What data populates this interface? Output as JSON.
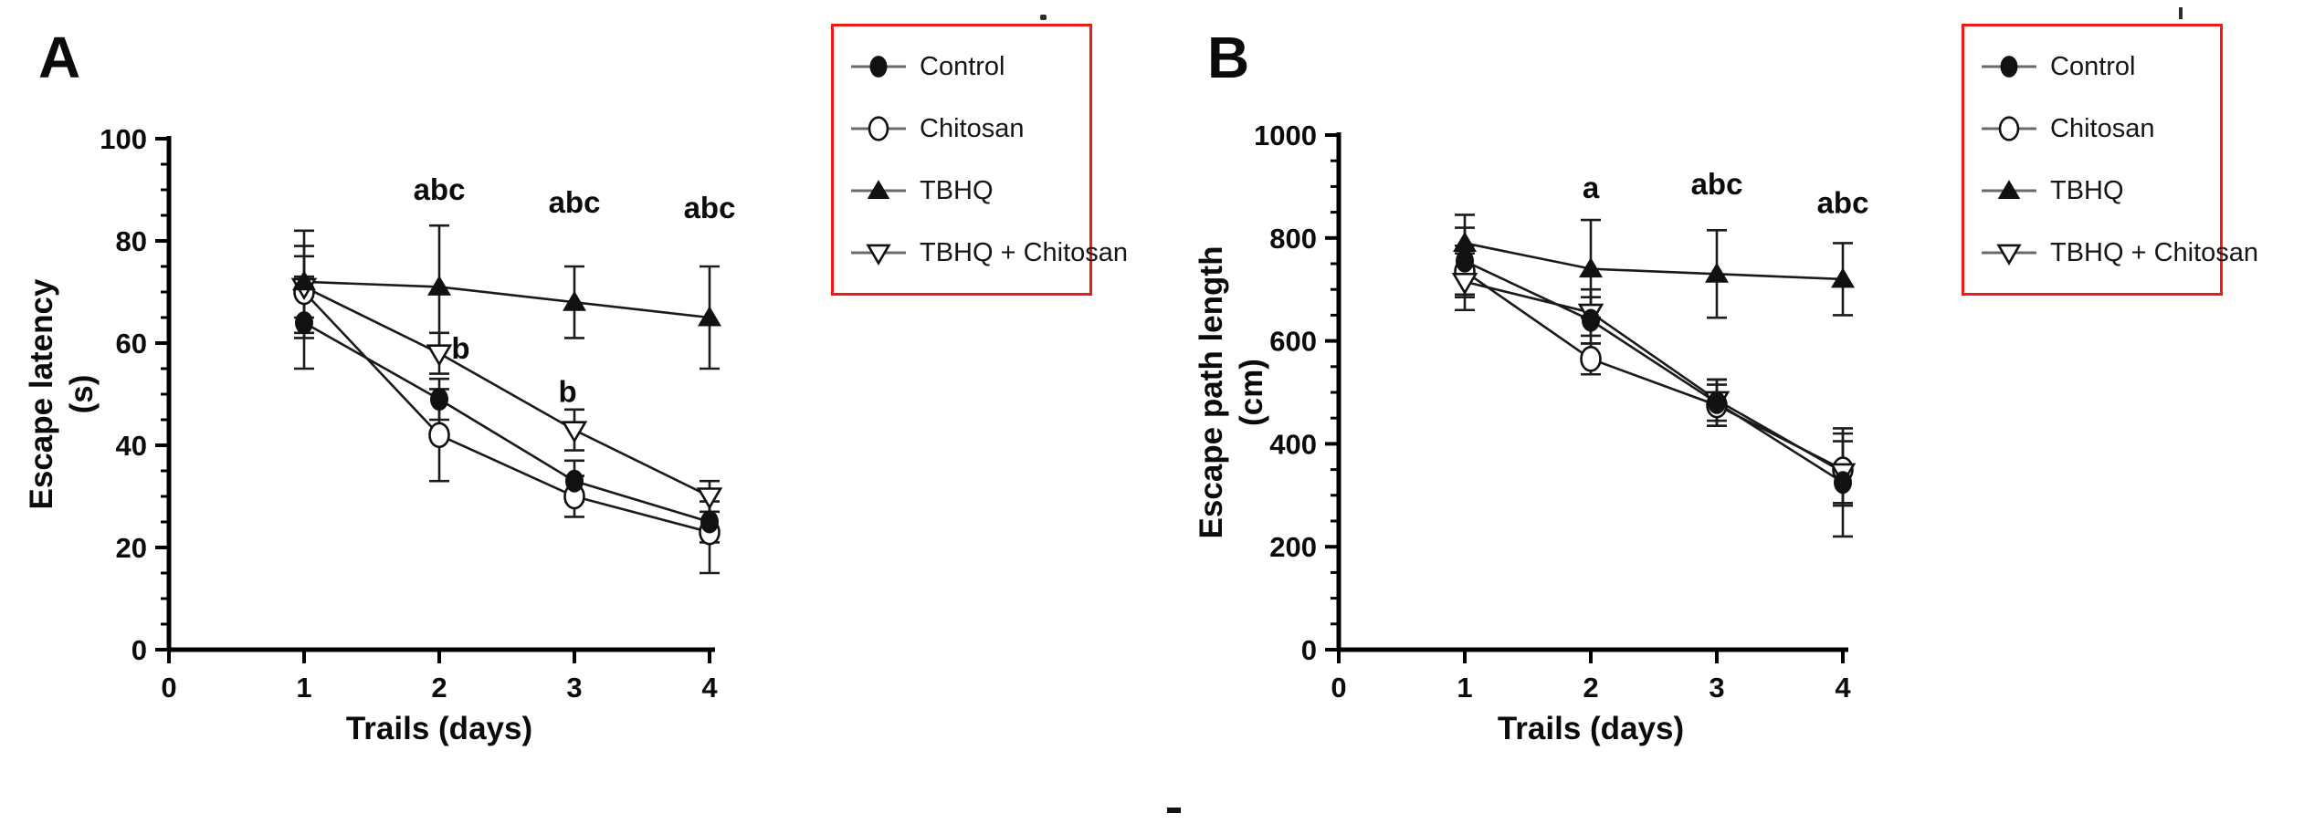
{
  "panels": [
    {
      "letter": "A"
    },
    {
      "letter": "B"
    }
  ],
  "legend": {
    "border_color": "#f21b14",
    "items": [
      {
        "label": "Control",
        "marker": "filled-circle"
      },
      {
        "label": "Chitosan",
        "marker": "open-circle"
      },
      {
        "label": "TBHQ",
        "marker": "filled-triangle-up"
      },
      {
        "label": "TBHQ + Chitosan",
        "marker": "open-triangle-down"
      }
    ]
  },
  "chart_data": [
    {
      "panel": "A",
      "type": "line",
      "title": "",
      "xlabel": "Trails (days)",
      "ylabel": [
        "Escape latency",
        "(s)"
      ],
      "xlim": [
        0,
        4
      ],
      "ylim": [
        0,
        100
      ],
      "xticks": [
        0,
        1,
        2,
        3,
        4
      ],
      "yticks": [
        0,
        20,
        40,
        60,
        80,
        100
      ],
      "y_minor_step": 5,
      "grid": false,
      "legend_position": "right-outside",
      "x": [
        1,
        2,
        3,
        4
      ],
      "series": [
        {
          "name": "Control",
          "marker": "filled-circle",
          "values": [
            64,
            49,
            33,
            25
          ],
          "errors": [
            9,
            4,
            4,
            4
          ]
        },
        {
          "name": "Chitosan",
          "marker": "open-circle",
          "values": [
            70,
            42,
            30,
            23
          ],
          "errors": [
            9,
            9,
            4,
            8
          ]
        },
        {
          "name": "TBHQ",
          "marker": "filled-triangle-up",
          "values": [
            72,
            71,
            68,
            65
          ],
          "errors": [
            10,
            12,
            7,
            10
          ]
        },
        {
          "name": "TBHQ + Chitosan",
          "marker": "open-triangle-down",
          "values": [
            71,
            58,
            43,
            30
          ],
          "errors": [
            6,
            4,
            4,
            3
          ]
        }
      ],
      "annotations": [
        {
          "text": "abc",
          "x": 2,
          "y": 88,
          "anchor": "middle"
        },
        {
          "text": "abc",
          "x": 3,
          "y": 85.5,
          "anchor": "middle"
        },
        {
          "text": "abc",
          "x": 4,
          "y": 84.5,
          "anchor": "middle"
        },
        {
          "text": "b",
          "x": 2.09,
          "y": 57,
          "anchor": "start"
        },
        {
          "text": "b",
          "x": 2.95,
          "y": 48.5,
          "anchor": "middle"
        }
      ]
    },
    {
      "panel": "B",
      "type": "line",
      "title": "",
      "xlabel": "Trails (days)",
      "ylabel": [
        "Escape path length",
        "(cm)"
      ],
      "xlim": [
        0,
        4
      ],
      "ylim": [
        0,
        1000
      ],
      "xticks": [
        0,
        1,
        2,
        3,
        4
      ],
      "yticks": [
        0,
        200,
        400,
        600,
        800,
        1000
      ],
      "y_minor_step": 50,
      "grid": false,
      "legend_position": "right-outside",
      "x": [
        1,
        2,
        3,
        4
      ],
      "series": [
        {
          "name": "Control",
          "marker": "filled-circle",
          "values": [
            755,
            640,
            480,
            325
          ],
          "errors": [
            65,
            45,
            45,
            105
          ]
        },
        {
          "name": "Chitosan",
          "marker": "open-circle",
          "values": [
            735,
            565,
            475,
            350
          ],
          "errors": [
            50,
            30,
            40,
            70
          ]
        },
        {
          "name": "TBHQ",
          "marker": "filled-triangle-up",
          "values": [
            790,
            740,
            730,
            720
          ],
          "errors": [
            55,
            95,
            85,
            70
          ]
        },
        {
          "name": "TBHQ + Chitosan",
          "marker": "open-triangle-down",
          "values": [
            715,
            655,
            485,
            345
          ],
          "errors": [
            55,
            45,
            40,
            60
          ]
        }
      ],
      "annotations": [
        {
          "text": "a",
          "x": 2,
          "y": 878,
          "anchor": "middle"
        },
        {
          "text": "abc",
          "x": 3,
          "y": 885,
          "anchor": "middle"
        },
        {
          "text": "abc",
          "x": 4,
          "y": 848,
          "anchor": "middle"
        }
      ]
    }
  ]
}
